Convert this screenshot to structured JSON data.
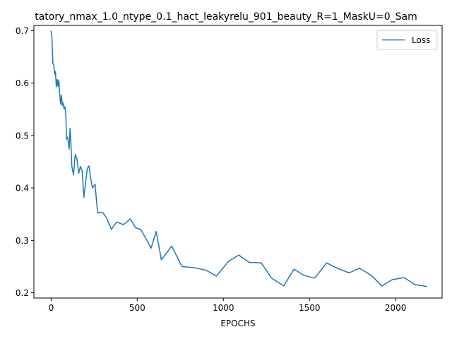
{
  "chart_data": {
    "type": "line",
    "title": "tatory_nmax_1.0_ntype_0.1_hact_leakyrelu_901_beauty_R=1_MaskU=0_Sam",
    "xlabel": "EPOCHS",
    "ylabel": "",
    "xlim": [
      -100,
      2270
    ],
    "ylim": [
      0.19,
      0.71
    ],
    "x_ticks": [
      0,
      500,
      1000,
      1500,
      2000
    ],
    "y_ticks": [
      0.2,
      0.3,
      0.4,
      0.5,
      0.6,
      0.7
    ],
    "x_tick_labels": [
      "0",
      "500",
      "1000",
      "1500",
      "2000"
    ],
    "y_tick_labels": [
      "0.2",
      "0.3",
      "0.4",
      "0.5",
      "0.6",
      "0.7"
    ],
    "legend_position": "top-right",
    "grid": false,
    "series": [
      {
        "name": "Loss",
        "color": "#1f77b4",
        "x": [
          0,
          5,
          10,
          15,
          20,
          25,
          30,
          35,
          40,
          45,
          50,
          55,
          60,
          65,
          70,
          75,
          80,
          85,
          90,
          95,
          100,
          105,
          110,
          115,
          120,
          130,
          140,
          150,
          160,
          170,
          180,
          190,
          200,
          210,
          220,
          230,
          240,
          255,
          270,
          285,
          300,
          320,
          350,
          380,
          420,
          460,
          490,
          520,
          560,
          580,
          610,
          640,
          700,
          760,
          830,
          900,
          960,
          1030,
          1090,
          1150,
          1220,
          1280,
          1350,
          1410,
          1470,
          1530,
          1600,
          1660,
          1730,
          1790,
          1860,
          1920,
          1980,
          2050,
          2110,
          2180
        ],
        "values": [
          0.699,
          0.685,
          0.637,
          0.636,
          0.617,
          0.622,
          0.593,
          0.607,
          0.594,
          0.606,
          0.578,
          0.56,
          0.577,
          0.557,
          0.562,
          0.551,
          0.555,
          0.54,
          0.493,
          0.497,
          0.487,
          0.474,
          0.514,
          0.487,
          0.442,
          0.425,
          0.464,
          0.455,
          0.428,
          0.441,
          0.433,
          0.382,
          0.41,
          0.437,
          0.442,
          0.418,
          0.4,
          0.407,
          0.352,
          0.354,
          0.353,
          0.344,
          0.321,
          0.335,
          0.33,
          0.341,
          0.324,
          0.321,
          0.298,
          0.285,
          0.317,
          0.263,
          0.289,
          0.25,
          0.248,
          0.243,
          0.232,
          0.26,
          0.272,
          0.258,
          0.257,
          0.228,
          0.213,
          0.245,
          0.233,
          0.228,
          0.257,
          0.247,
          0.238,
          0.247,
          0.233,
          0.213,
          0.225,
          0.229,
          0.216,
          0.212
        ]
      }
    ]
  }
}
